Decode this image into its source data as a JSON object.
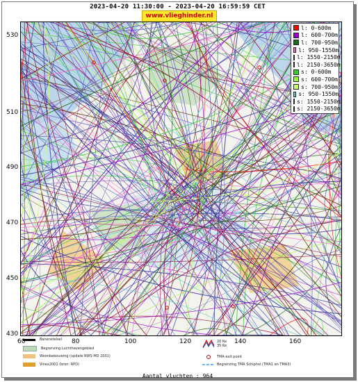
{
  "header": {
    "title": "2023-04-20 11:30:00 - 2023-04-20 16:59:59 CET",
    "site": "www.vlieghinder.nl"
  },
  "axes": {
    "y_ticks": [
      "530",
      "510",
      "490",
      "470",
      "450",
      "430"
    ],
    "x_ticks": [
      "60",
      "80",
      "100",
      "120",
      "140",
      "160"
    ]
  },
  "legend": {
    "items": [
      {
        "label": "l: 0-600m",
        "color": "#ff0000"
      },
      {
        "label": "l: 600-700m",
        "color": "#9900cc"
      },
      {
        "label": "l: 700-950m",
        "color": "#1a6e1a"
      },
      {
        "label": "l: 950-1550m",
        "color": "#ff66cc"
      },
      {
        "label": "l: 1550-2150m",
        "color": "#990033"
      },
      {
        "label": "l: 2150-3650m",
        "color": "#663300"
      },
      {
        "label": "s: 0-600m",
        "color": "#33cc33"
      },
      {
        "label": "s: 600-700m",
        "color": "#99ff33"
      },
      {
        "label": "s: 700-950m",
        "color": "#ccff66"
      },
      {
        "label": "s: 950-1550m",
        "color": "#66cccc"
      },
      {
        "label": "s: 1550-2150m",
        "color": "#6666cc"
      },
      {
        "label": "s: 2150-3650m",
        "color": "#333399"
      }
    ]
  },
  "bottom_legend": {
    "runway": "Banenstelsel",
    "airport_boundary": "Begrenzing Luchthavengebied",
    "housing": "Woonbebouwing (update RWS-MD 2001)",
    "vinex": "Vinex2001 (bron: RPD)",
    "noise_20": "20 Ke",
    "noise_35": "35 Ke",
    "tma_exit": "TMA exit point",
    "tma_boundary": "Begrenzing TMA Schiphol  (TMA1 en TMA3)"
  },
  "footer": {
    "count": "Aantal vluchten : 964"
  }
}
